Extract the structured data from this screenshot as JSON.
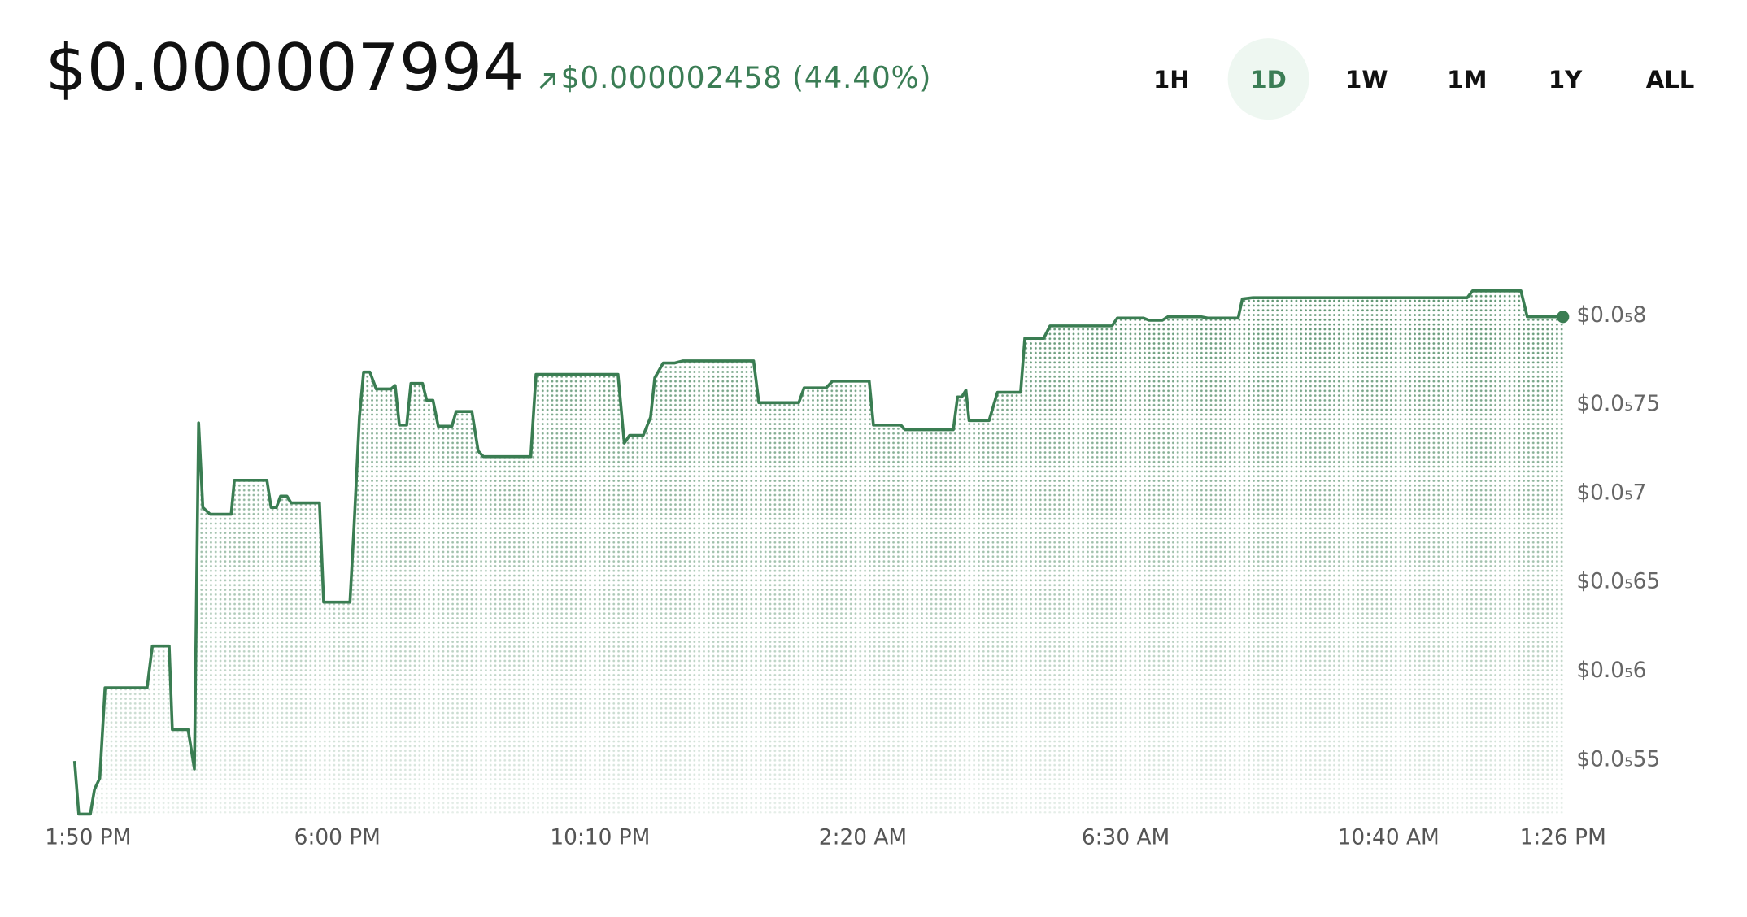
{
  "header": {
    "price": "$0.000007994",
    "change": "$0.000002458 (44.40%)"
  },
  "ranges": [
    "1H",
    "1D",
    "1W",
    "1M",
    "1Y",
    "ALL"
  ],
  "selected_range": "1D",
  "chart_data": {
    "type": "line",
    "color": "#3a7d52",
    "x": [
      0,
      4,
      15,
      19,
      24,
      29,
      69,
      74,
      90,
      93,
      108,
      114,
      118,
      122,
      129,
      149,
      152,
      183,
      187,
      192,
      196,
      202,
      206,
      233,
      237,
      262,
      266,
      271,
      275,
      281,
      287,
      301,
      305,
      309,
      316,
      320,
      331,
      335,
      341,
      346,
      359,
      363,
      378,
      384,
      389,
      434,
      439,
      517,
      523,
      528,
      541,
      548,
      552,
      560,
      571,
      579,
      646,
      651,
      689,
      694,
      715,
      721,
      756,
      760,
      786,
      790,
      836,
      840,
      844,
      848,
      851,
      870,
      878,
      900,
      904,
      922,
      928,
      987,
      992,
      1017,
      1022,
      1035,
      1040,
      1072,
      1078,
      1107,
      1111,
      1121,
      1325,
      1330,
      1376,
      1382,
      1416
    ],
    "values": [
      5.494e-06,
      5.195e-06,
      5.195e-06,
      5.335e-06,
      5.398e-06,
      5.906e-06,
      5.906e-06,
      6.141e-06,
      6.141e-06,
      5.671e-06,
      5.671e-06,
      5.449e-06,
      7.397e-06,
      6.921e-06,
      6.883e-06,
      6.883e-06,
      7.074e-06,
      7.074e-06,
      6.921e-06,
      6.921e-06,
      6.985e-06,
      6.985e-06,
      6.947e-06,
      6.947e-06,
      6.388e-06,
      6.388e-06,
      6.826e-06,
      7.429e-06,
      7.683e-06,
      7.683e-06,
      7.588e-06,
      7.588e-06,
      7.607e-06,
      7.385e-06,
      7.385e-06,
      7.619e-06,
      7.619e-06,
      7.524e-06,
      7.524e-06,
      7.378e-06,
      7.378e-06,
      7.461e-06,
      7.461e-06,
      7.239e-06,
      7.207e-06,
      7.207e-06,
      7.67e-06,
      7.67e-06,
      7.283e-06,
      7.327e-06,
      7.327e-06,
      7.429e-06,
      7.651e-06,
      7.734e-06,
      7.734e-06,
      7.746e-06,
      7.746e-06,
      7.511e-06,
      7.511e-06,
      7.594e-06,
      7.594e-06,
      7.632e-06,
      7.632e-06,
      7.385e-06,
      7.385e-06,
      7.359e-06,
      7.359e-06,
      7.543e-06,
      7.543e-06,
      7.581e-06,
      7.41e-06,
      7.41e-06,
      7.569e-06,
      7.569e-06,
      7.873e-06,
      7.873e-06,
      7.943e-06,
      7.943e-06,
      7.987e-06,
      7.987e-06,
      7.975e-06,
      7.975e-06,
      7.994e-06,
      7.994e-06,
      7.987e-06,
      7.987e-06,
      8.095e-06,
      8.102e-06,
      8.102e-06,
      8.14e-06,
      8.14e-06,
      7.994e-06,
      7.994e-06
    ],
    "xlim": [
      0,
      1416
    ],
    "xticks": [
      {
        "value": 0,
        "label": "1:50 PM"
      },
      {
        "value": 250,
        "label": "6:00 PM"
      },
      {
        "value": 500,
        "label": "10:10 PM"
      },
      {
        "value": 750,
        "label": "2:20 AM"
      },
      {
        "value": 1000,
        "label": "6:30 AM"
      },
      {
        "value": 1250,
        "label": "10:40 AM"
      },
      {
        "value": 1416,
        "label": "1:26 PM"
      }
    ],
    "ylim": [
      5.2e-06,
      8.3e-06
    ],
    "yticks": [
      {
        "value": 5.5e-06,
        "label": "$0.0₅55"
      },
      {
        "value": 6e-06,
        "label": "$0.0₅6"
      },
      {
        "value": 6.5e-06,
        "label": "$0.0₅65"
      },
      {
        "value": 7e-06,
        "label": "$0.0₅7"
      },
      {
        "value": 7.5e-06,
        "label": "$0.0₅75"
      },
      {
        "value": 8e-06,
        "label": "$0.0₅8"
      }
    ],
    "grid": false
  }
}
